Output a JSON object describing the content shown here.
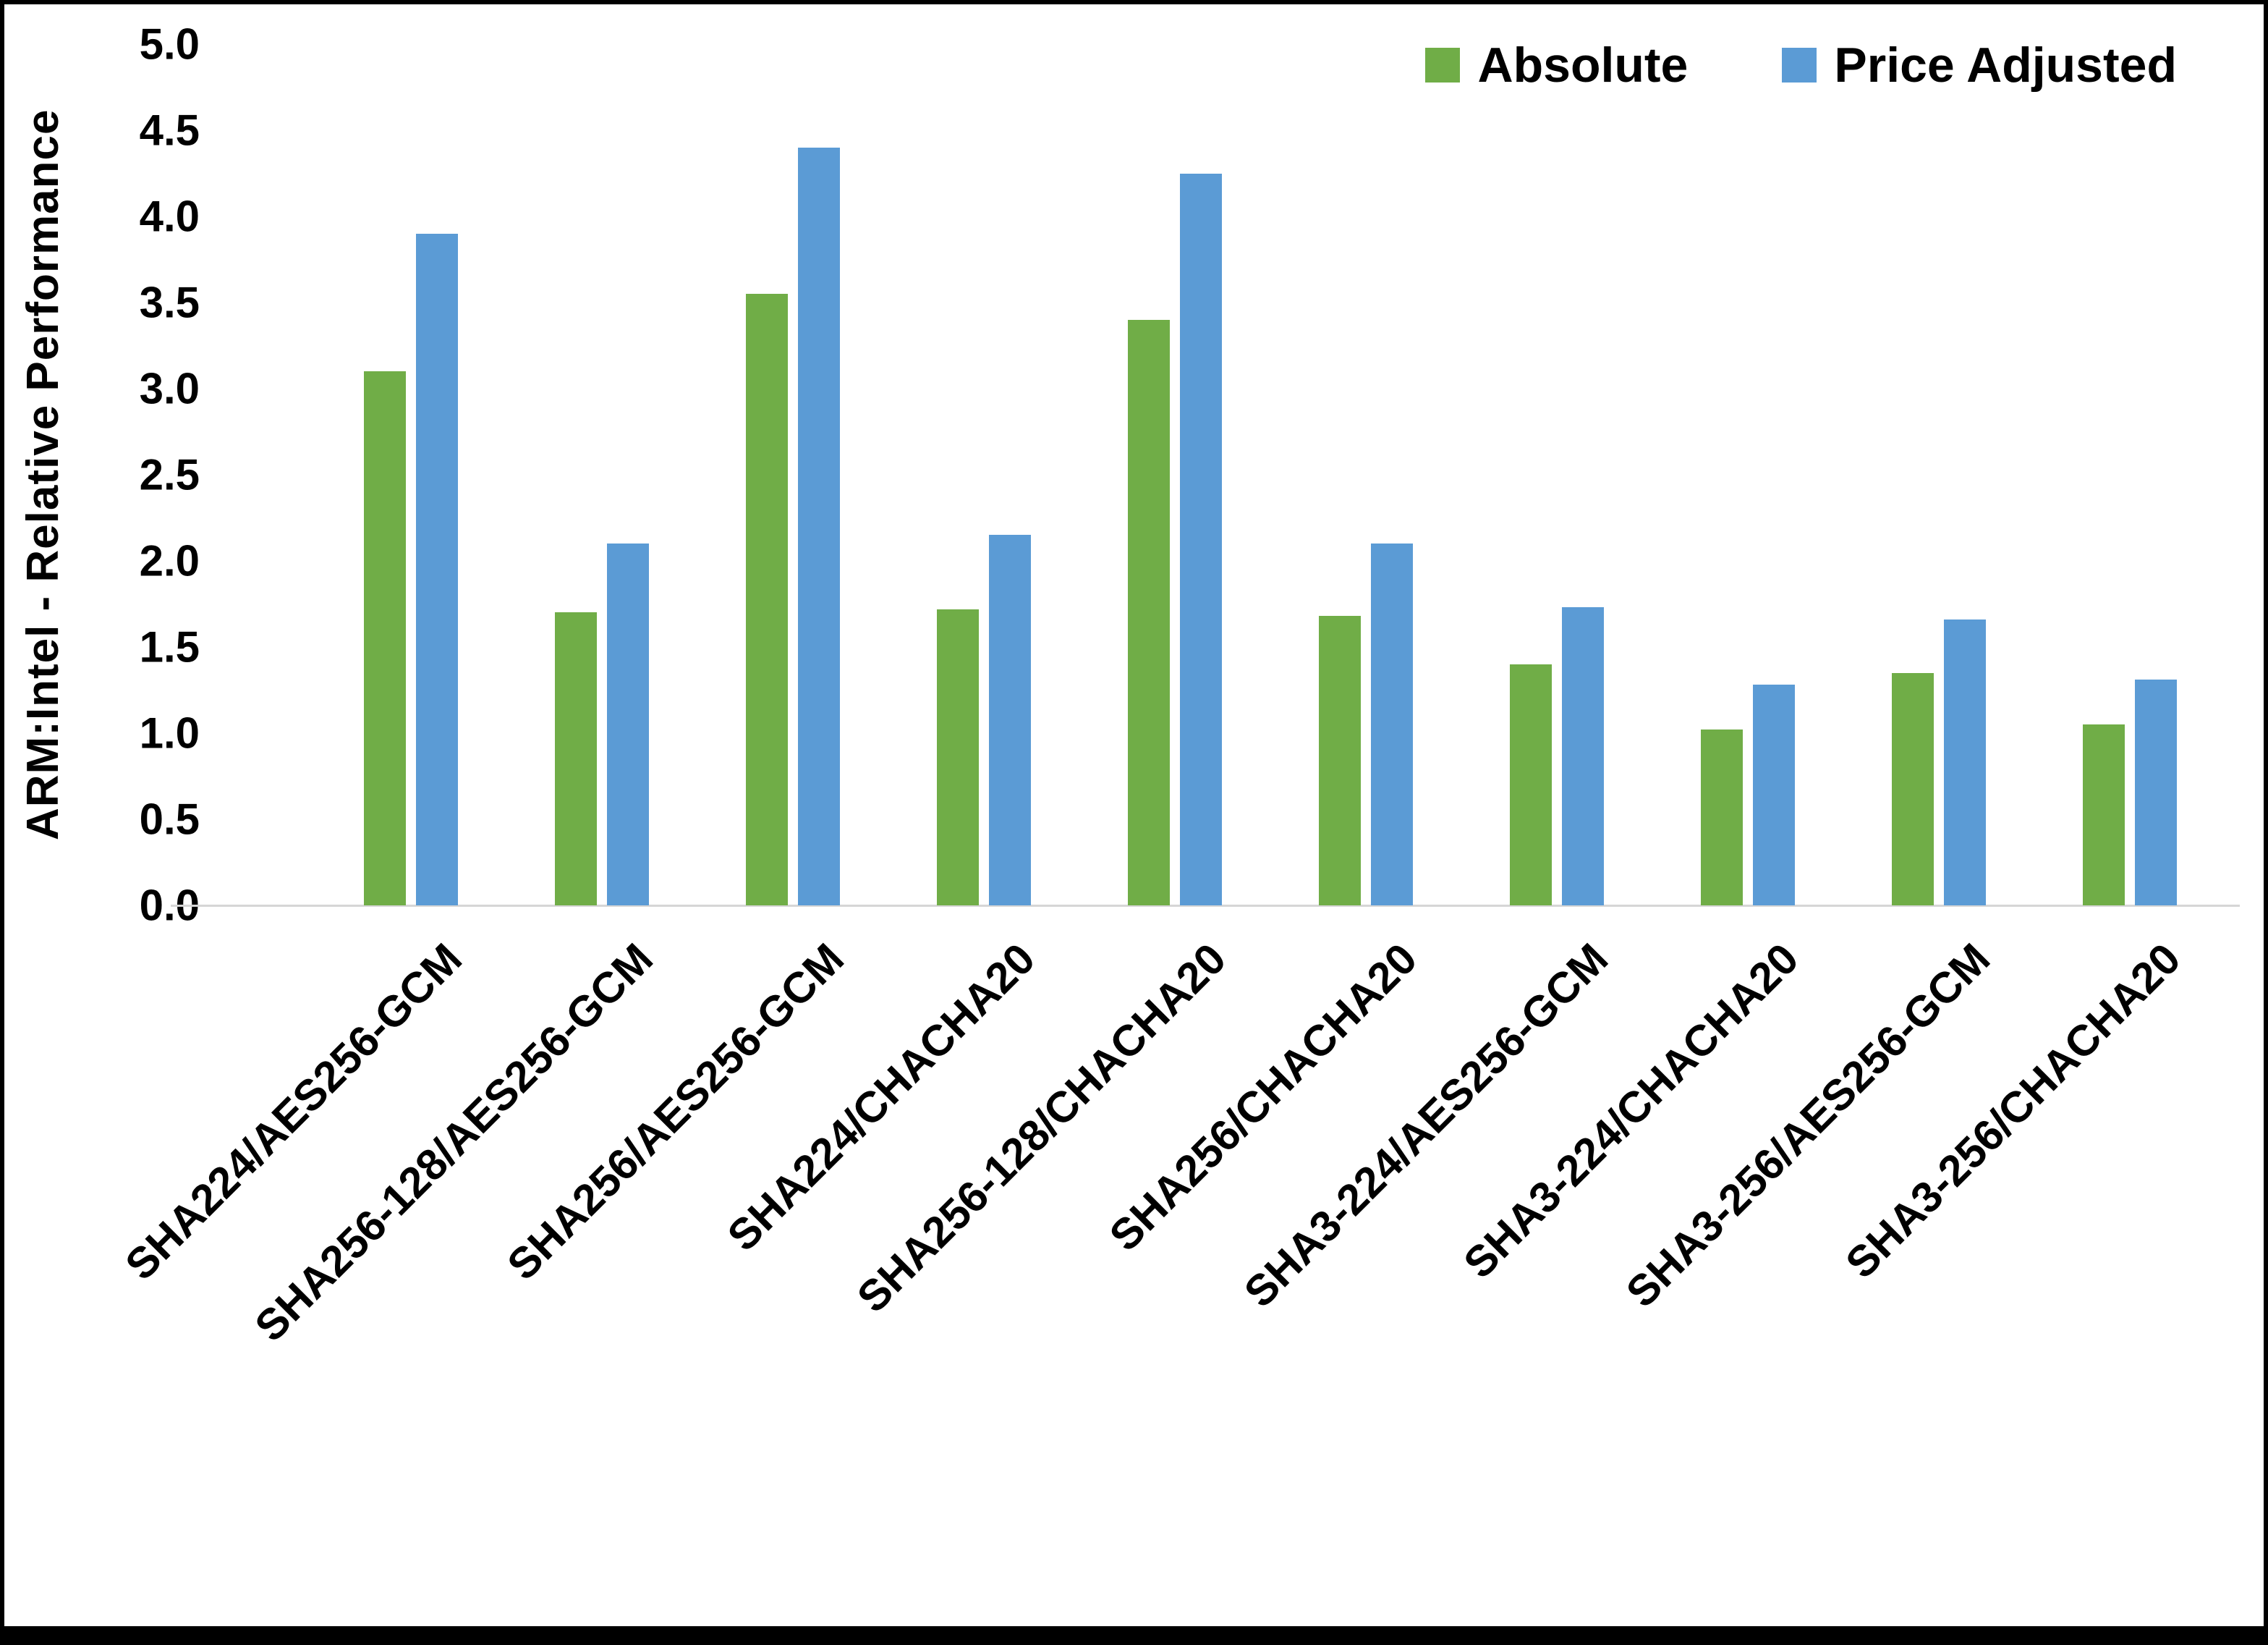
{
  "chart_data": {
    "type": "bar",
    "title": "",
    "ylabel": "ARM:Intel - Relative Performance",
    "xlabel": "",
    "ylim": [
      0,
      5
    ],
    "ytick_step": 0.5,
    "grid": false,
    "legend_position": "top-right",
    "background_color": "#ffffff",
    "frame_color": "#000000",
    "baseline_color": "#d6d6d6",
    "categories": [
      "SHA224/AES256-GCM",
      "SHA256-128/AES256-GCM",
      "SHA256/AES256-GCM",
      "SHA224/CHACHA20",
      "SHA256-128/CHACHA20",
      "SHA256/CHACHA20",
      "SHA3-224/AES256-GCM",
      "SHA3-224/CHACHA20",
      "SHA3-256/AES256-GCM",
      "SHA3-256/CHACHA20"
    ],
    "series": [
      {
        "name": "Absolute",
        "color": "#70AD47",
        "values": [
          3.1,
          1.7,
          3.55,
          1.72,
          3.4,
          1.68,
          1.4,
          1.02,
          1.35,
          1.05
        ]
      },
      {
        "name": "Price Adjusted",
        "color": "#5B9BD5",
        "values": [
          3.9,
          2.1,
          4.4,
          2.15,
          4.25,
          2.1,
          1.73,
          1.28,
          1.66,
          1.31
        ]
      }
    ]
  }
}
